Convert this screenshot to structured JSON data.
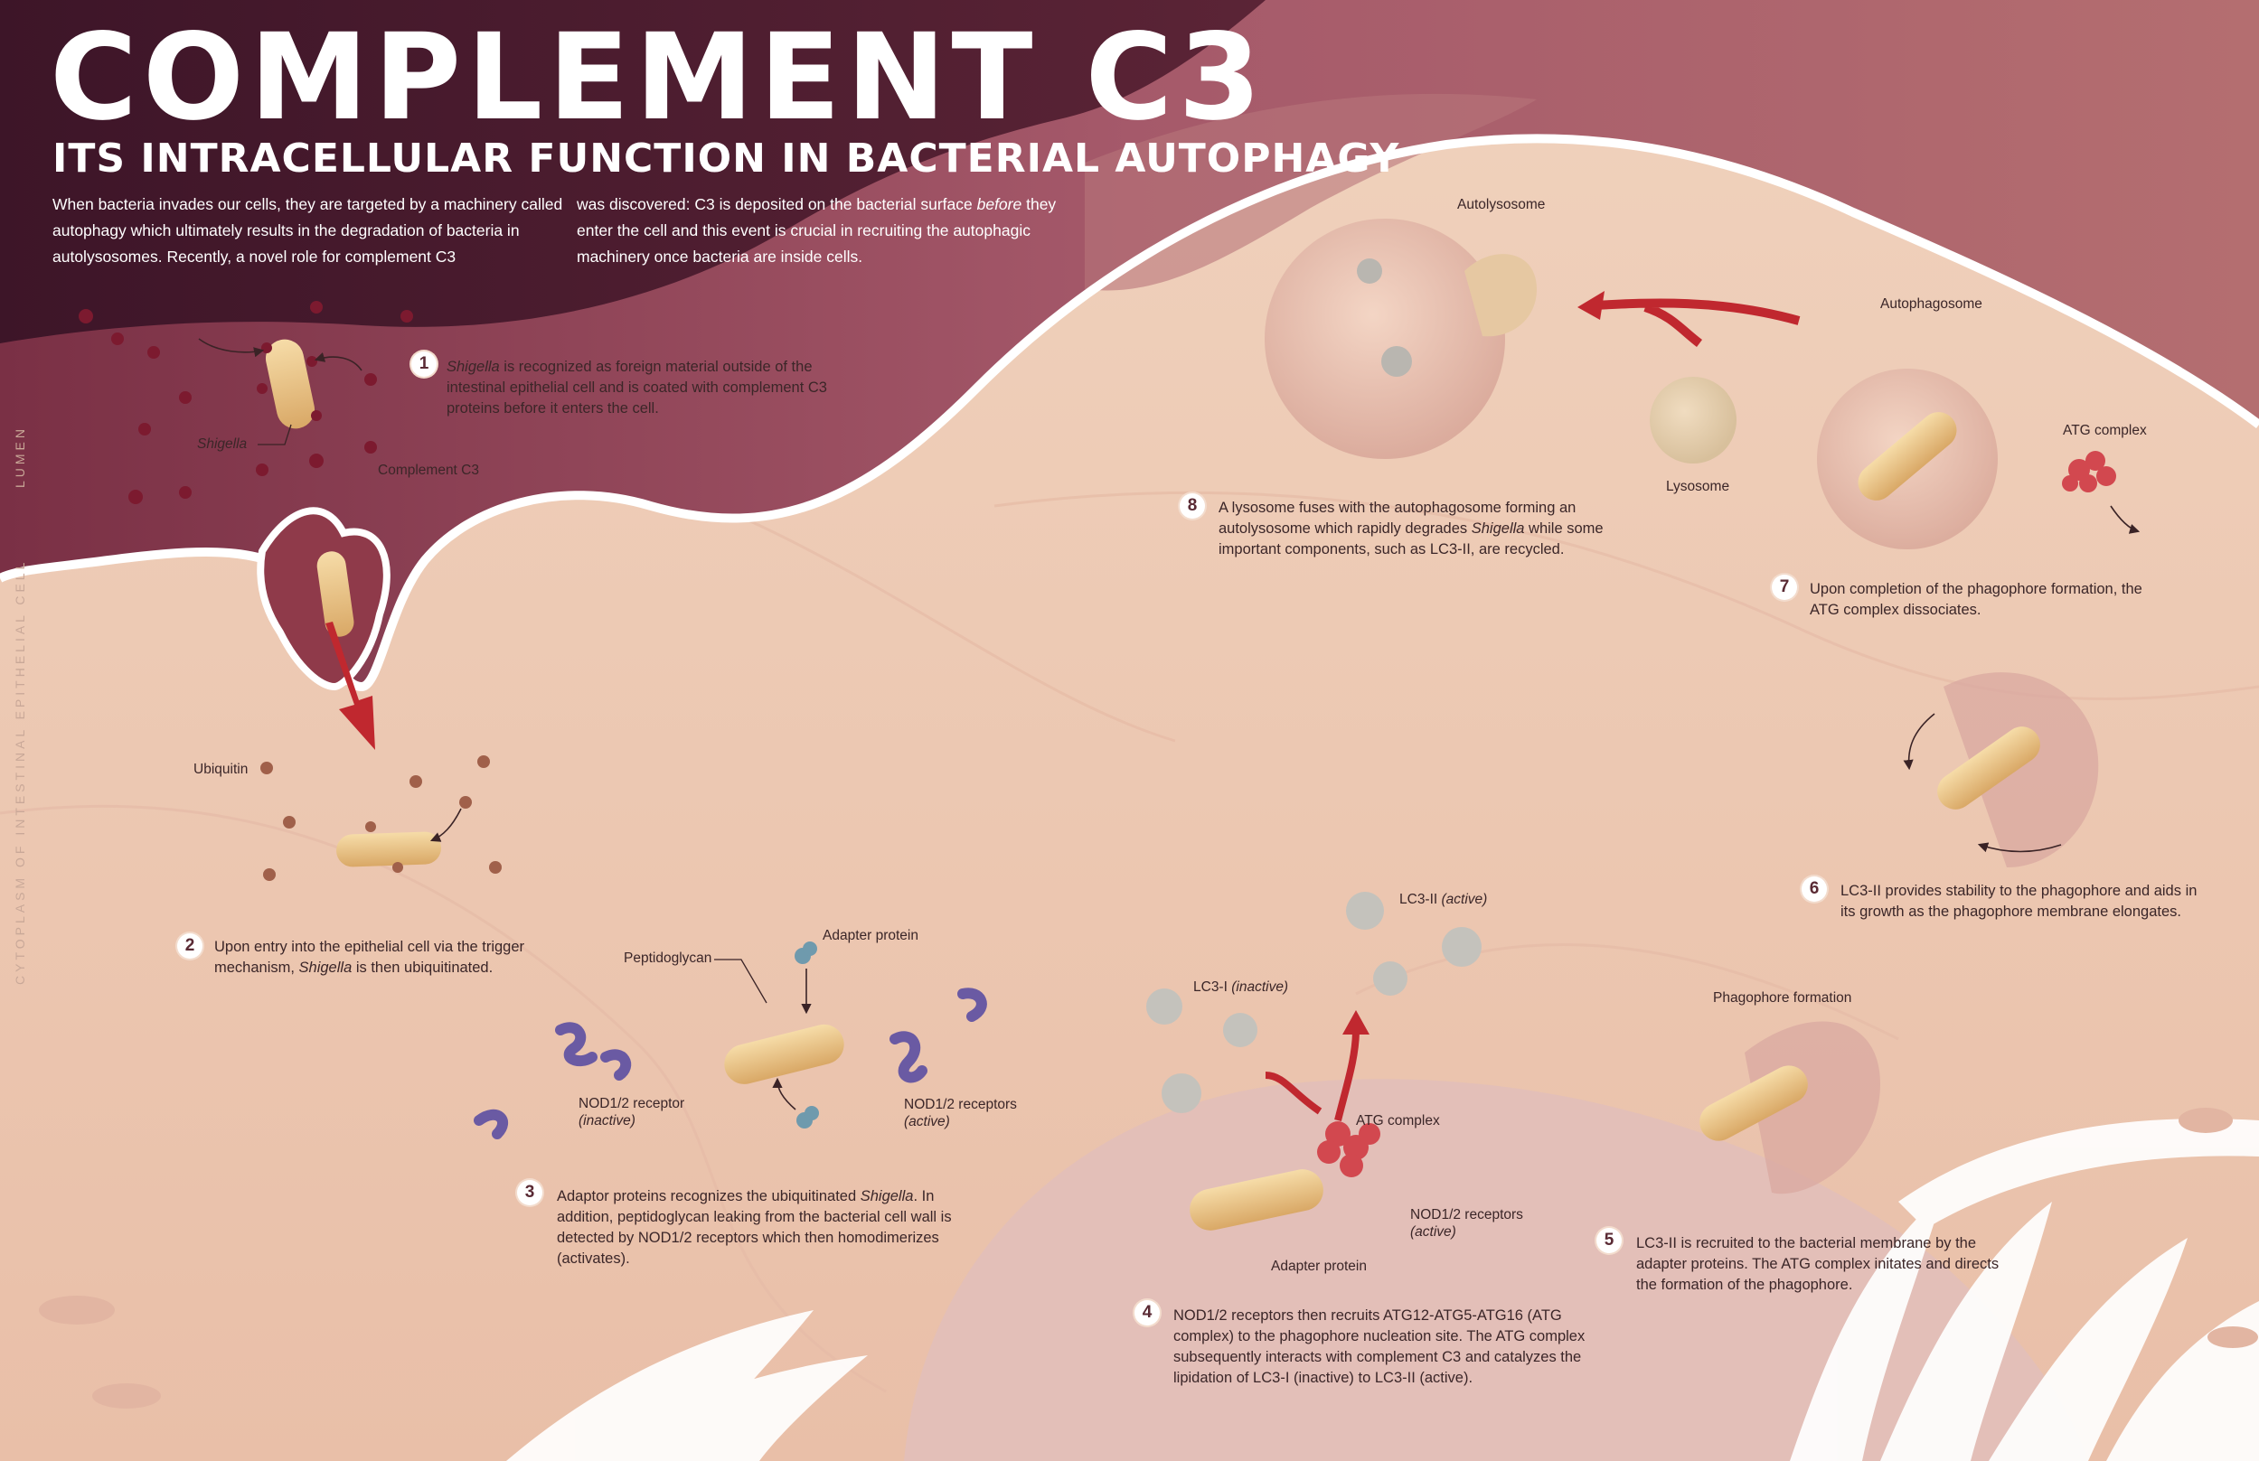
{
  "header": {
    "title": "COMPLEMENT C3",
    "subtitle": "ITS INTRACELLULAR FUNCTION IN BACTERIAL AUTOPHAGY",
    "intro_col1": "When bacteria invades our cells, they are targeted by a machinery called autophagy which ultimately results in the degradation of bacteria in autolysosomes. Recently, a novel role for complement C3",
    "intro_col2_pre": "was discovered: C3 is deposited on the bacterial surface ",
    "intro_col2_em": "before",
    "intro_col2_post": " they enter the cell and this event is crucial in recruiting the autophagic machinery once bacteria are inside cells."
  },
  "side_labels": {
    "lumen": "LUMEN",
    "cytoplasm": "CYTOPLASM OF INTESTINAL EPITHELIAL CELL"
  },
  "labels": {
    "shigella": "Shigella",
    "complement_c3": "Complement C3",
    "ubiquitin": "Ubiquitin",
    "peptidoglycan": "Peptidoglycan",
    "adapter_protein_top": "Adapter protein",
    "nod_inactive_a": "NOD1/2 receptor",
    "nod_inactive_b": "(inactive)",
    "nod_active_a": "NOD1/2 receptors",
    "nod_active_b": "(active)",
    "lc3_ii_a": "LC3-II ",
    "lc3_ii_b": "(active)",
    "lc3_i_a": "LC3-I ",
    "lc3_i_b": "(inactive)",
    "atg_complex": "ATG complex",
    "nod_active2_a": "NOD1/2 receptors",
    "nod_active2_b": "(active)",
    "adapter_protein_bottom": "Adapter protein",
    "phagophore_formation": "Phagophore formation",
    "autolysosome": "Autolysosome",
    "autophagosome": "Autophagosome",
    "atg_complex2": "ATG complex",
    "lysosome": "Lysosome"
  },
  "steps": [
    {
      "num": "1",
      "pre": "",
      "em": "Shigella",
      "post": " is recognized as foreign material outside of the intestinal epithelial cell and is coated with complement C3 proteins before it enters the cell."
    },
    {
      "num": "2",
      "pre": "Upon entry into the epithelial cell via the trigger mechanism, ",
      "em": "Shigella",
      "post": " is then ubiquitinated."
    },
    {
      "num": "3",
      "pre": "Adaptor proteins recognizes the ubiquitinated ",
      "em": "Shigella",
      "post": ". In addition, peptidoglycan leaking from the bacterial cell wall is detected by NOD1/2 receptors which then homodimerizes (activates)."
    },
    {
      "num": "4",
      "pre": "NOD1/2 receptors then recruits ATG12-ATG5-ATG16 (ATG complex) to the phagophore nucleation site. The ATG complex subsequently interacts with complement C3 and catalyzes the lipidation of LC3-I (inactive) to LC3-II (active).",
      "em": "",
      "post": ""
    },
    {
      "num": "5",
      "pre": "LC3-II is recruited to the bacterial membrane by the adapter proteins. The ATG complex initates and directs the formation of the phagophore.",
      "em": "",
      "post": ""
    },
    {
      "num": "6",
      "pre": "LC3-II  provides stability to the phagophore and aids in its growth as the phagophore membrane elongates.",
      "em": "",
      "post": ""
    },
    {
      "num": "7",
      "pre": "Upon completion of the phagophore formation, the ATG complex dissociates.",
      "em": "",
      "post": ""
    },
    {
      "num": "8",
      "pre": "A lysosome fuses with the autophagosome forming an autolysosome which rapidly degrades ",
      "em": "Shigella",
      "post": " while some important components, such as LC3-II, are recycled."
    }
  ],
  "colors": {
    "header_dark": "#4a1a2c",
    "lumen": "#a95f68",
    "cytoplasm": "#f2d6c4",
    "membrane": "#ffffff",
    "bacterium": "#ecc07f",
    "c3": "#8b1e34",
    "ubiquitin": "#a0604a",
    "nod": "#6a5aa3",
    "lc3": "#c4c2bc",
    "atg": "#d2484f",
    "arrow": "#c0282f"
  }
}
